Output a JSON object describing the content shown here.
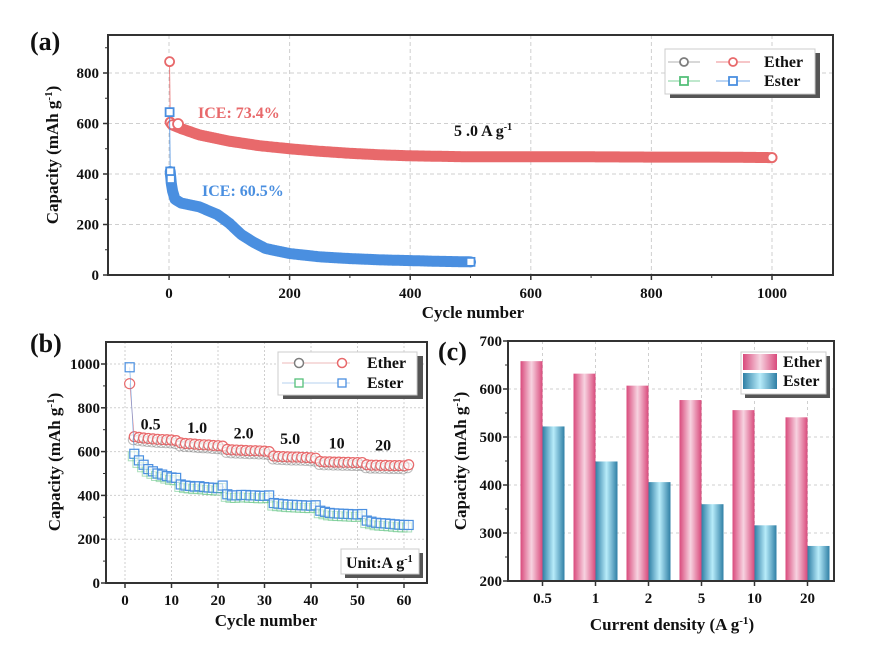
{
  "colors": {
    "ether": "#e8696b",
    "ester": "#4a8fe0",
    "ether_gray": "#7d7d7d",
    "ester_green": "#55c07a",
    "bar_ether": "#d9507f",
    "bar_ester": "#3a9cc0",
    "grid": "#cfcfcf",
    "axis": "#222222"
  },
  "chart_data": [
    {
      "panel": "(a)",
      "type": "scatter",
      "title": "",
      "xlabel": "Cycle number",
      "ylabel": "Capacity (mAh g-1)",
      "xlim": [
        -100,
        1100
      ],
      "ylim": [
        0,
        920
      ],
      "xticks": [
        0,
        200,
        400,
        600,
        800,
        1000
      ],
      "yticks": [
        0,
        200,
        400,
        600,
        800
      ],
      "grid": true,
      "legend_position": "top-right",
      "legend": [
        "Ether",
        "Ester"
      ],
      "annotations": [
        {
          "text": "ICE: 73.4%",
          "series": "Ether",
          "x": 40,
          "y": 650
        },
        {
          "text": "ICE: 60.5%",
          "series": "Ester",
          "x": 45,
          "y": 330
        },
        {
          "text": "5.0 A g-1",
          "series": "",
          "x": 470,
          "y": 600
        }
      ],
      "series": [
        {
          "name": "Ether",
          "marker": "circle",
          "points": [
            [
              1,
              845
            ],
            [
              2,
              605
            ],
            [
              5,
              595
            ],
            [
              10,
              590
            ],
            [
              20,
              580
            ],
            [
              50,
              555
            ],
            [
              100,
              530
            ],
            [
              150,
              512
            ],
            [
              200,
              500
            ],
            [
              250,
              490
            ],
            [
              300,
              482
            ],
            [
              350,
              476
            ],
            [
              400,
              472
            ],
            [
              500,
              468
            ],
            [
              600,
              468
            ],
            [
              700,
              468
            ],
            [
              800,
              467
            ],
            [
              900,
              467
            ],
            [
              1000,
              465
            ]
          ]
        },
        {
          "name": "Ester",
          "marker": "square",
          "points": [
            [
              1,
              645
            ],
            [
              2,
              410
            ],
            [
              3,
              380
            ],
            [
              5,
              340
            ],
            [
              10,
              300
            ],
            [
              20,
              285
            ],
            [
              50,
              270
            ],
            [
              80,
              240
            ],
            [
              100,
              205
            ],
            [
              120,
              160
            ],
            [
              140,
              130
            ],
            [
              160,
              105
            ],
            [
              200,
              85
            ],
            [
              250,
              72
            ],
            [
              300,
              65
            ],
            [
              350,
              60
            ],
            [
              400,
              57
            ],
            [
              450,
              54
            ],
            [
              500,
              52
            ]
          ]
        }
      ]
    },
    {
      "panel": "(b)",
      "type": "scatter",
      "title": "",
      "xlabel": "Cycle number",
      "ylabel": "Capacity (mAh g-1)",
      "xlim": [
        -5,
        65
      ],
      "ylim": [
        0,
        1100
      ],
      "xticks": [
        0,
        10,
        20,
        30,
        40,
        50,
        60
      ],
      "yticks": [
        0,
        200,
        400,
        600,
        800,
        1000
      ],
      "grid": true,
      "legend_position": "top-right",
      "legend": [
        "Ether",
        "Ester"
      ],
      "rate_labels": [
        "0.5",
        "1.0",
        "2.0",
        "5.0",
        "10",
        "20"
      ],
      "unit_box": "Unit:A g-1",
      "series": [
        {
          "name": "Ether",
          "marker": "circle",
          "values": [
            910,
            668,
            665,
            662,
            660,
            658,
            656,
            655,
            654,
            653,
            650,
            640,
            637,
            636,
            634,
            632,
            631,
            630,
            628,
            627,
            625,
            610,
            608,
            607,
            606,
            605,
            604,
            604,
            603,
            602,
            600,
            580,
            578,
            577,
            576,
            575,
            575,
            574,
            573,
            572,
            570,
            555,
            553,
            553,
            552,
            552,
            551,
            551,
            550,
            550,
            550,
            540,
            538,
            538,
            537,
            537,
            536,
            536,
            536,
            535,
            540
          ]
        },
        {
          "name": "Ester",
          "marker": "square",
          "values": [
            985,
            590,
            560,
            540,
            520,
            510,
            500,
            495,
            488,
            482,
            480,
            450,
            445,
            443,
            440,
            442,
            438,
            436,
            435,
            433,
            445,
            405,
            400,
            400,
            402,
            402,
            400,
            400,
            398,
            398,
            400,
            365,
            362,
            360,
            358,
            357,
            356,
            355,
            354,
            353,
            355,
            330,
            325,
            320,
            318,
            317,
            316,
            315,
            314,
            313,
            315,
            285,
            280,
            275,
            273,
            272,
            270,
            268,
            266,
            265,
            265
          ]
        }
      ]
    },
    {
      "panel": "(c)",
      "type": "bar",
      "title": "",
      "xlabel": "Current density (A g-1)",
      "ylabel": "Capacity (mAh g-1)",
      "categories": [
        "0.5",
        "1",
        "2",
        "5",
        "10",
        "20"
      ],
      "ylim": [
        200,
        700
      ],
      "yticks": [
        200,
        300,
        400,
        500,
        600,
        700
      ],
      "grid": true,
      "legend_position": "top-right",
      "series": [
        {
          "name": "Ether",
          "values": [
            658,
            632,
            607,
            577,
            556,
            541
          ]
        },
        {
          "name": "Ester",
          "values": [
            522,
            449,
            406,
            360,
            316,
            273
          ]
        }
      ]
    }
  ],
  "labels": {
    "panel_a": "(a)",
    "panel_b": "(b)",
    "panel_c": "(c)",
    "ylabel_main": "Capacity (mAh g",
    "ylabel_sup": "-1",
    "ylabel_close": ")",
    "xlabel_cycle": "Cycle number",
    "xlabel_current": "Current density (A g",
    "xlabel_current_sup": "-1",
    "xlabel_current_close": ")",
    "ice_ether": "ICE: 73.4%",
    "ice_ester": "ICE: 60.5%",
    "rate_a": "5 .0 A g",
    "rate_a_sup": "-1",
    "unit_box": "Unit:A g",
    "unit_box_sup": "-1",
    "legend_ether": "Ether",
    "legend_ester": "Ester"
  }
}
